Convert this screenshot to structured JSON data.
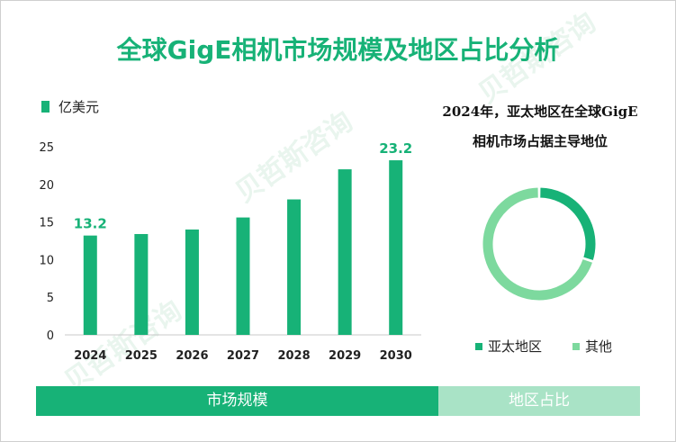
{
  "title": "全球GigE相机市场规模及地区占比分析",
  "unit_legend": "亿美元",
  "pie_title_line1": "2024年，亚太地区在全球GigE",
  "pie_title_line2": "相机市场占据主导地位",
  "bands": {
    "left": "市场规模",
    "right": "地区占比"
  },
  "colors": {
    "bar": "#17b277",
    "pie_primary": "#17b277",
    "pie_secondary": "#7dd99e",
    "band_left": "#17b277",
    "band_right": "#a9e3c6"
  },
  "chart_data": [
    {
      "type": "bar",
      "categories": [
        "2024",
        "2025",
        "2026",
        "2027",
        "2028",
        "2029",
        "2030"
      ],
      "values": [
        13.2,
        13.4,
        14.0,
        15.6,
        18.0,
        22.0,
        23.2
      ],
      "data_labels": [
        "13.2",
        "",
        "",
        "",
        "",
        "",
        "23.2"
      ],
      "ylim": [
        0,
        25
      ],
      "yticks": [
        0,
        5,
        10,
        15,
        20,
        25
      ],
      "grid": false
    },
    {
      "type": "pie",
      "donut": true,
      "labels": [
        "亚太地区",
        "其他"
      ],
      "values": [
        0.3,
        0.7
      ],
      "legend": "bottom"
    }
  ]
}
